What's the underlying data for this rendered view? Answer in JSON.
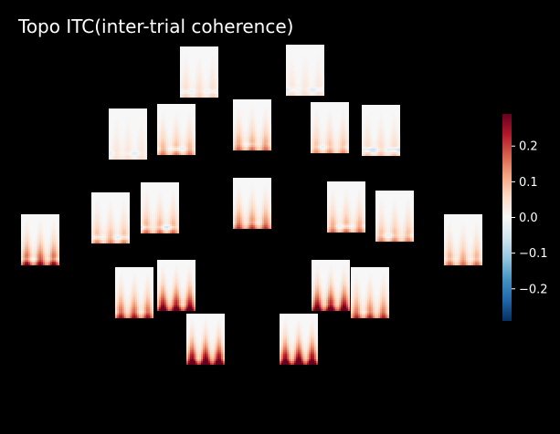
{
  "colors": {
    "background": "#000000",
    "text": "#ffffff",
    "panel_background": "#f7f7f7",
    "colormap": [
      "#053061",
      "#2166ac",
      "#4393c3",
      "#92c5de",
      "#d1e5f0",
      "#f7f7f7",
      "#fddbc7",
      "#f4a582",
      "#d6604d",
      "#b2182b",
      "#67001f"
    ]
  },
  "chart_data": {
    "type": "heatmap",
    "title": "Topo ITC(inter-trial coherence)",
    "layout": "topographic sensor array of time-frequency panels",
    "colorbar": {
      "colormap": "RdBu_r",
      "range": [
        -0.29,
        0.29
      ],
      "ticks": [
        0.2,
        0.1,
        0.0,
        -0.1,
        -0.2
      ],
      "tick_labels": [
        "0.2",
        "0.1",
        "0.0",
        "−0.1",
        "−0.2"
      ]
    },
    "channels": [
      {
        "peak": 0.12,
        "dip": -0.05,
        "streaks": [
          0.15,
          0.5,
          0.85
        ],
        "tail": 0.2
      },
      {
        "peak": 0.1,
        "dip": -0.05,
        "streaks": [
          0.15,
          0.5,
          0.85
        ],
        "tail": 0.1
      },
      {
        "peak": 0.1,
        "dip": -0.04,
        "streaks": [
          0.2,
          0.5,
          0.85
        ],
        "tail": 0.1
      },
      {
        "peak": 0.16,
        "dip": -0.08,
        "streaks": [
          0.15,
          0.5,
          0.85
        ],
        "tail": 0.5
      },
      {
        "peak": 0.18,
        "dip": -0.05,
        "streaks": [
          0.15,
          0.5,
          0.85
        ],
        "tail": 0.5
      },
      {
        "peak": 0.16,
        "dip": -0.05,
        "streaks": [
          0.15,
          0.5,
          0.85
        ],
        "tail": 0.4
      },
      {
        "peak": 0.12,
        "dip": -0.1,
        "streaks": [
          0.15,
          0.5,
          0.85
        ],
        "tail": 0.3
      },
      {
        "peak": 0.14,
        "dip": -0.08,
        "streaks": [
          0.15,
          0.5,
          0.85
        ],
        "tail": 0.6
      },
      {
        "peak": 0.16,
        "dip": -0.1,
        "streaks": [
          0.15,
          0.5,
          0.85
        ],
        "tail": 0.6
      },
      {
        "peak": 0.2,
        "dip": -0.04,
        "streaks": [
          0.15,
          0.5,
          0.85
        ],
        "tail": 0.6
      },
      {
        "peak": 0.16,
        "dip": -0.08,
        "streaks": [
          0.15,
          0.5,
          0.85
        ],
        "tail": 0.6
      },
      {
        "peak": 0.14,
        "dip": -0.06,
        "streaks": [
          0.15,
          0.5,
          0.85
        ],
        "tail": 0.6
      },
      {
        "peak": 0.22,
        "dip": -0.08,
        "streaks": [
          0.15,
          0.5,
          0.85
        ],
        "tail": 0.8
      },
      {
        "peak": 0.16,
        "dip": -0.04,
        "streaks": [
          0.15,
          0.5,
          0.85
        ],
        "tail": 0.6
      },
      {
        "peak": 0.22,
        "dip": -0.04,
        "streaks": [
          0.15,
          0.5,
          0.85
        ],
        "tail": 0.7
      },
      {
        "peak": 0.26,
        "dip": -0.04,
        "streaks": [
          0.15,
          0.5,
          0.85
        ],
        "tail": 0.9
      },
      {
        "peak": 0.26,
        "dip": -0.04,
        "streaks": [
          0.15,
          0.5,
          0.85
        ],
        "tail": 0.9
      },
      {
        "peak": 0.2,
        "dip": -0.04,
        "streaks": [
          0.15,
          0.5,
          0.85
        ],
        "tail": 0.7
      },
      {
        "peak": 0.27,
        "dip": -0.04,
        "streaks": [
          0.15,
          0.5,
          0.85
        ],
        "tail": 1.0
      },
      {
        "peak": 0.27,
        "dip": -0.04,
        "streaks": [
          0.15,
          0.5,
          0.85
        ],
        "tail": 1.0
      }
    ]
  }
}
